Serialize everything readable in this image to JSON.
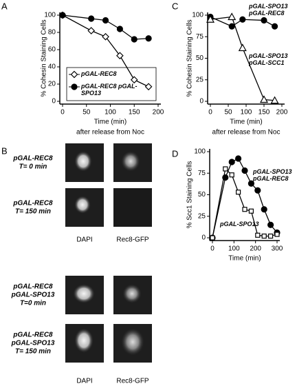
{
  "chart_data": [
    {
      "panel": "A",
      "type": "line",
      "ylabel": "% Cohesin Staining Cells",
      "xlabel": "Time (min)",
      "xlabel2": "after release from Noc",
      "xlim": [
        0,
        200
      ],
      "xticks": [
        0,
        50,
        100,
        150,
        200
      ],
      "ylim": [
        0,
        100
      ],
      "yticks": [
        0,
        20,
        40,
        60,
        80,
        100
      ],
      "legend": "box",
      "series": [
        {
          "name": "pGAL-REC8",
          "color": "#000000",
          "marker": "diamond",
          "filled": false,
          "x": [
            0,
            60,
            90,
            120,
            150,
            180
          ],
          "values": [
            100,
            82,
            75,
            53,
            25,
            17
          ]
        },
        {
          "name": "pGAL-REC8 pGAL-SPO13",
          "color": "#000000",
          "marker": "circle",
          "filled": true,
          "x": [
            0,
            60,
            90,
            120,
            150,
            180
          ],
          "values": [
            100,
            96,
            94,
            84,
            72,
            73
          ]
        }
      ]
    },
    {
      "panel": "C",
      "type": "line",
      "ylabel": "% Cohesin Staining Cells",
      "xlabel": "Time (min)",
      "xlabel2": "after release from Noc",
      "xlim": [
        0,
        200
      ],
      "xticks": [
        0,
        50,
        100,
        150,
        200
      ],
      "ylim": [
        0,
        100
      ],
      "yticks": [
        0,
        25,
        50,
        75,
        100
      ],
      "legend": "inline",
      "series": [
        {
          "name": "pGAL-SPO13 pGAL-REC8",
          "color": "#000000",
          "marker": "circle",
          "filled": true,
          "x": [
            0,
            60,
            90,
            150,
            180
          ],
          "values": [
            98,
            87,
            95,
            94,
            87
          ]
        },
        {
          "name": "pGAL-SPO13 pGAL-SCC1",
          "color": "#000000",
          "marker": "triangle",
          "filled": false,
          "x": [
            0,
            60,
            90,
            150,
            180
          ],
          "values": [
            95,
            98,
            62,
            2,
            1
          ]
        }
      ]
    },
    {
      "panel": "D",
      "type": "line",
      "ylabel": "% Scc1 Staining Cells",
      "xlabel": "Time (min)",
      "xlim": [
        0,
        300
      ],
      "xticks": [
        0,
        100,
        200,
        300
      ],
      "ylim": [
        0,
        100
      ],
      "yticks": [
        0,
        25,
        50,
        75,
        100
      ],
      "legend": "inline",
      "series": [
        {
          "name": "pGAL-SPO13 pGAL-REC8",
          "color": "#000000",
          "marker": "circle",
          "filled": true,
          "x": [
            0,
            60,
            90,
            120,
            150,
            180,
            210,
            240,
            270,
            300
          ],
          "values": [
            0,
            70,
            88,
            92,
            78,
            63,
            55,
            33,
            15,
            6
          ]
        },
        {
          "name": "pGAL-SPO13",
          "color": "#000000",
          "marker": "square",
          "filled": false,
          "x": [
            0,
            60,
            90,
            120,
            150,
            180,
            210,
            240,
            270,
            300
          ],
          "values": [
            0,
            80,
            73,
            53,
            33,
            31,
            3,
            2,
            2,
            4
          ]
        }
      ]
    }
  ],
  "panel_b": {
    "panel": "B",
    "columns": [
      "DAPI",
      "Rec8-GFP"
    ],
    "rows": [
      {
        "label": [
          "pGAL-REC8",
          "T= 0 min"
        ]
      },
      {
        "label": [
          "pGAL-REC8",
          "T= 150 min"
        ]
      },
      {
        "label": [
          "pGAL-REC8",
          "pGAL-SPO13",
          "T=0 min"
        ]
      },
      {
        "label": [
          "pGAL-REC8",
          "pGAL-SPO13",
          "T= 150 min"
        ]
      }
    ]
  }
}
